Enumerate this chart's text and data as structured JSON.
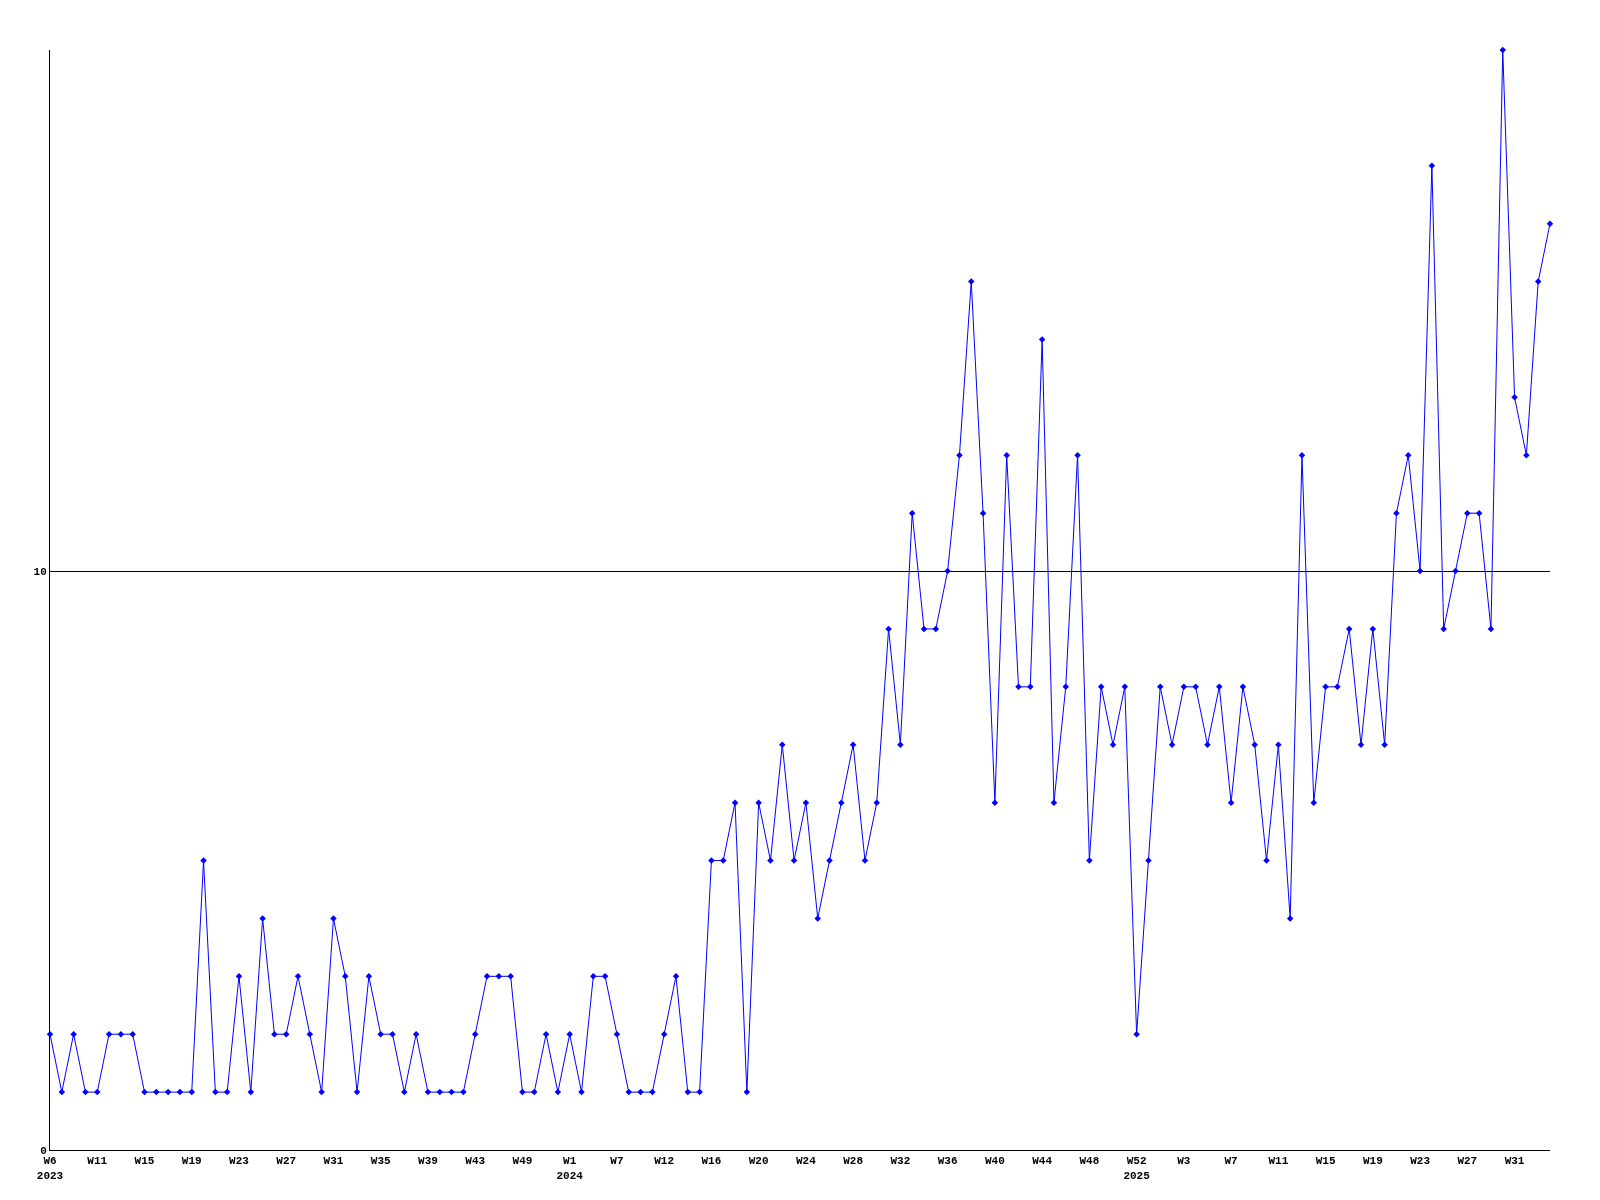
{
  "chart_data": {
    "type": "line",
    "categories": [
      "W6\n2023",
      null,
      null,
      null,
      "W11",
      null,
      null,
      null,
      "W15",
      null,
      null,
      null,
      "W19",
      null,
      null,
      null,
      "W23",
      null,
      null,
      null,
      "W27",
      null,
      null,
      null,
      "W31",
      null,
      null,
      null,
      "W35",
      null,
      null,
      null,
      "W39",
      null,
      null,
      null,
      "W43",
      null,
      null,
      null,
      "W49",
      null,
      null,
      null,
      "W1\n2024",
      null,
      null,
      null,
      "W7",
      null,
      null,
      null,
      "W12",
      null,
      null,
      null,
      "W16",
      null,
      null,
      null,
      "W20",
      null,
      null,
      null,
      "W24",
      null,
      null,
      null,
      "W28",
      null,
      null,
      null,
      "W32",
      null,
      null,
      null,
      "W36",
      null,
      null,
      null,
      "W40",
      null,
      null,
      null,
      "W44",
      null,
      null,
      null,
      "W48",
      null,
      null,
      null,
      "W52\n2025",
      null,
      null,
      null,
      "W3",
      null,
      null,
      null,
      "W7",
      null,
      null,
      null,
      "W11",
      null,
      null,
      null,
      "W15",
      null,
      null,
      null,
      "W19",
      null,
      null,
      null,
      "W23",
      null,
      null,
      null,
      "W27",
      null,
      null,
      null,
      "W31",
      null,
      null,
      null
    ],
    "series": [
      {
        "color": "#0000ff",
        "values": [
          2,
          1,
          2,
          1,
          1,
          2,
          2,
          2,
          1,
          1,
          1,
          1,
          1,
          5,
          1,
          1,
          3,
          1,
          4,
          2,
          2,
          3,
          2,
          1,
          4,
          3,
          1,
          3,
          2,
          2,
          1,
          2,
          1,
          1,
          1,
          1,
          2,
          3,
          3,
          3,
          1,
          1,
          2,
          1,
          2,
          1,
          3,
          3,
          2,
          1,
          1,
          1,
          2,
          3,
          1,
          1,
          5,
          5,
          6,
          1,
          6,
          5,
          7,
          5,
          6,
          4,
          5,
          6,
          7,
          5,
          6,
          9,
          7,
          11,
          9,
          9,
          10,
          12,
          15,
          11,
          6,
          12,
          8,
          8,
          14,
          6,
          8,
          12,
          5,
          8,
          7,
          8,
          2,
          5,
          8,
          7,
          8,
          8,
          7,
          8,
          6,
          8,
          7,
          5,
          7,
          4,
          12,
          6,
          8,
          8,
          9,
          7,
          9,
          7,
          11,
          12,
          10,
          17,
          9,
          10,
          11,
          11,
          9,
          19,
          13,
          12,
          15,
          16
        ]
      }
    ],
    "ylim": [
      0,
      19
    ],
    "yticks": [
      0,
      10
    ],
    "grid": "y",
    "marker": "diamond",
    "line_style": "solid"
  }
}
